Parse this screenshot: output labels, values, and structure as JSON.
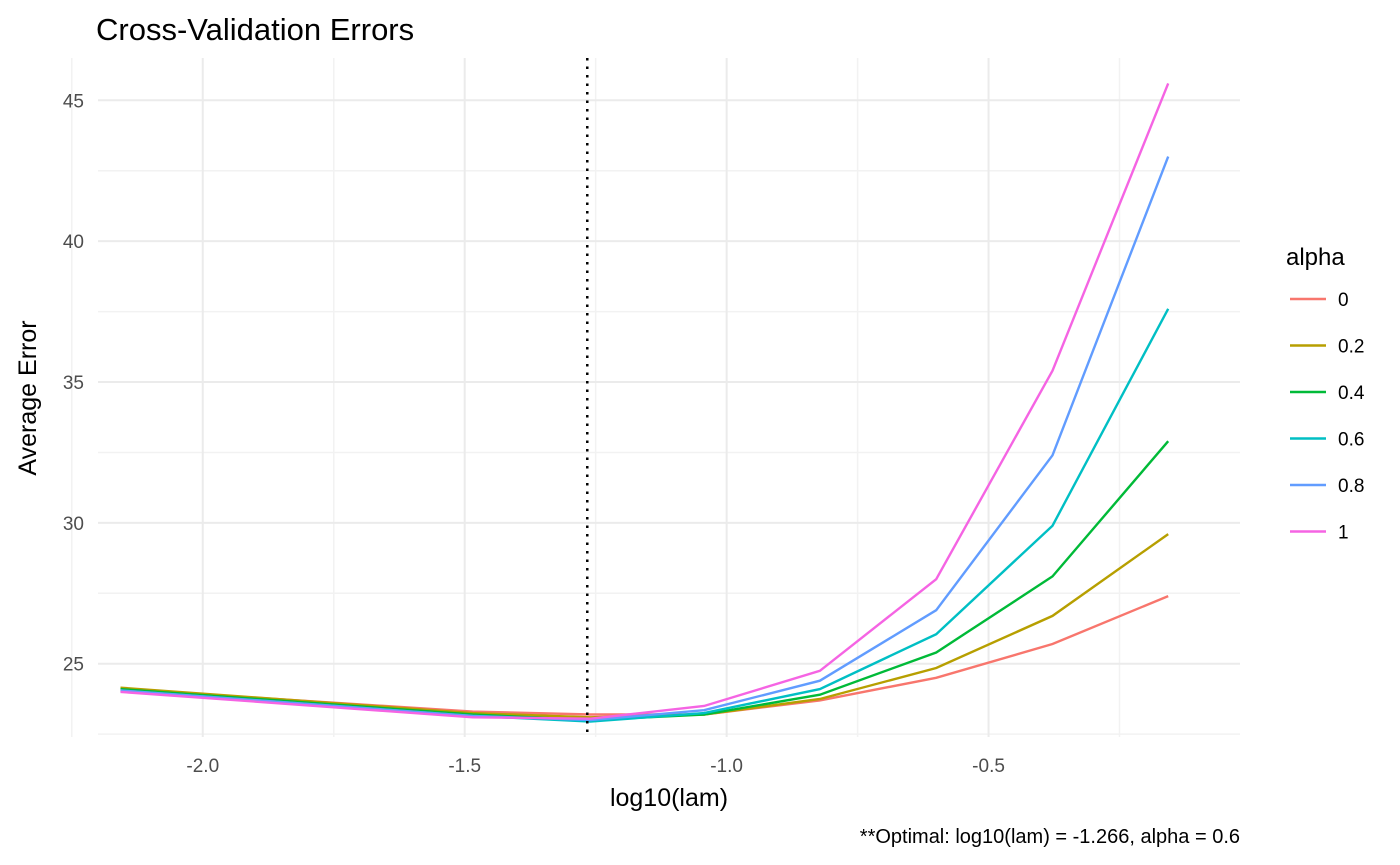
{
  "chart_data": {
    "type": "line",
    "title": "Cross-Validation Errors",
    "xlabel": "log10(lam)",
    "ylabel": "Average Error",
    "caption": "**Optimal: log10(lam) = -1.266, alpha = 0.6",
    "xlim": [
      -2.2,
      -0.02
    ],
    "ylim": [
      22.4,
      46.5
    ],
    "x_ticks": [
      -2.0,
      -1.5,
      -1.0,
      -0.5
    ],
    "x_tick_labels": [
      "-2.0",
      "-1.5",
      "-1.0",
      "-0.5"
    ],
    "y_ticks": [
      25,
      30,
      35,
      40,
      45
    ],
    "y_tick_labels": [
      "25",
      "30",
      "35",
      "40",
      "45"
    ],
    "grid": true,
    "vline": {
      "x": -1.266,
      "style": "dotted",
      "color": "#000000"
    },
    "legend": {
      "title": "alpha",
      "position": "right"
    },
    "x": [
      -2.157,
      -1.485,
      -1.26,
      -1.043,
      -0.822,
      -0.6,
      -0.378,
      -0.157
    ],
    "series": [
      {
        "name": "0",
        "color": "#F8766D",
        "values": [
          24.1,
          23.3,
          23.2,
          23.2,
          23.7,
          24.5,
          25.7,
          27.4
        ]
      },
      {
        "name": "0.2",
        "color": "#B79F00",
        "values": [
          24.15,
          23.25,
          23.1,
          23.2,
          23.75,
          24.85,
          26.7,
          29.6
        ]
      },
      {
        "name": "0.4",
        "color": "#00BA38",
        "values": [
          24.1,
          23.2,
          23.0,
          23.2,
          23.9,
          25.4,
          28.1,
          32.9
        ]
      },
      {
        "name": "0.6",
        "color": "#00BFC4",
        "values": [
          24.05,
          23.15,
          22.95,
          23.25,
          24.1,
          26.05,
          29.9,
          37.6
        ]
      },
      {
        "name": "0.8",
        "color": "#619CFF",
        "values": [
          24.05,
          23.15,
          23.0,
          23.35,
          24.4,
          26.9,
          32.4,
          43.0
        ]
      },
      {
        "name": "1",
        "color": "#F564E3",
        "values": [
          24.0,
          23.1,
          23.05,
          23.5,
          24.75,
          28.0,
          35.4,
          45.6
        ]
      }
    ]
  }
}
